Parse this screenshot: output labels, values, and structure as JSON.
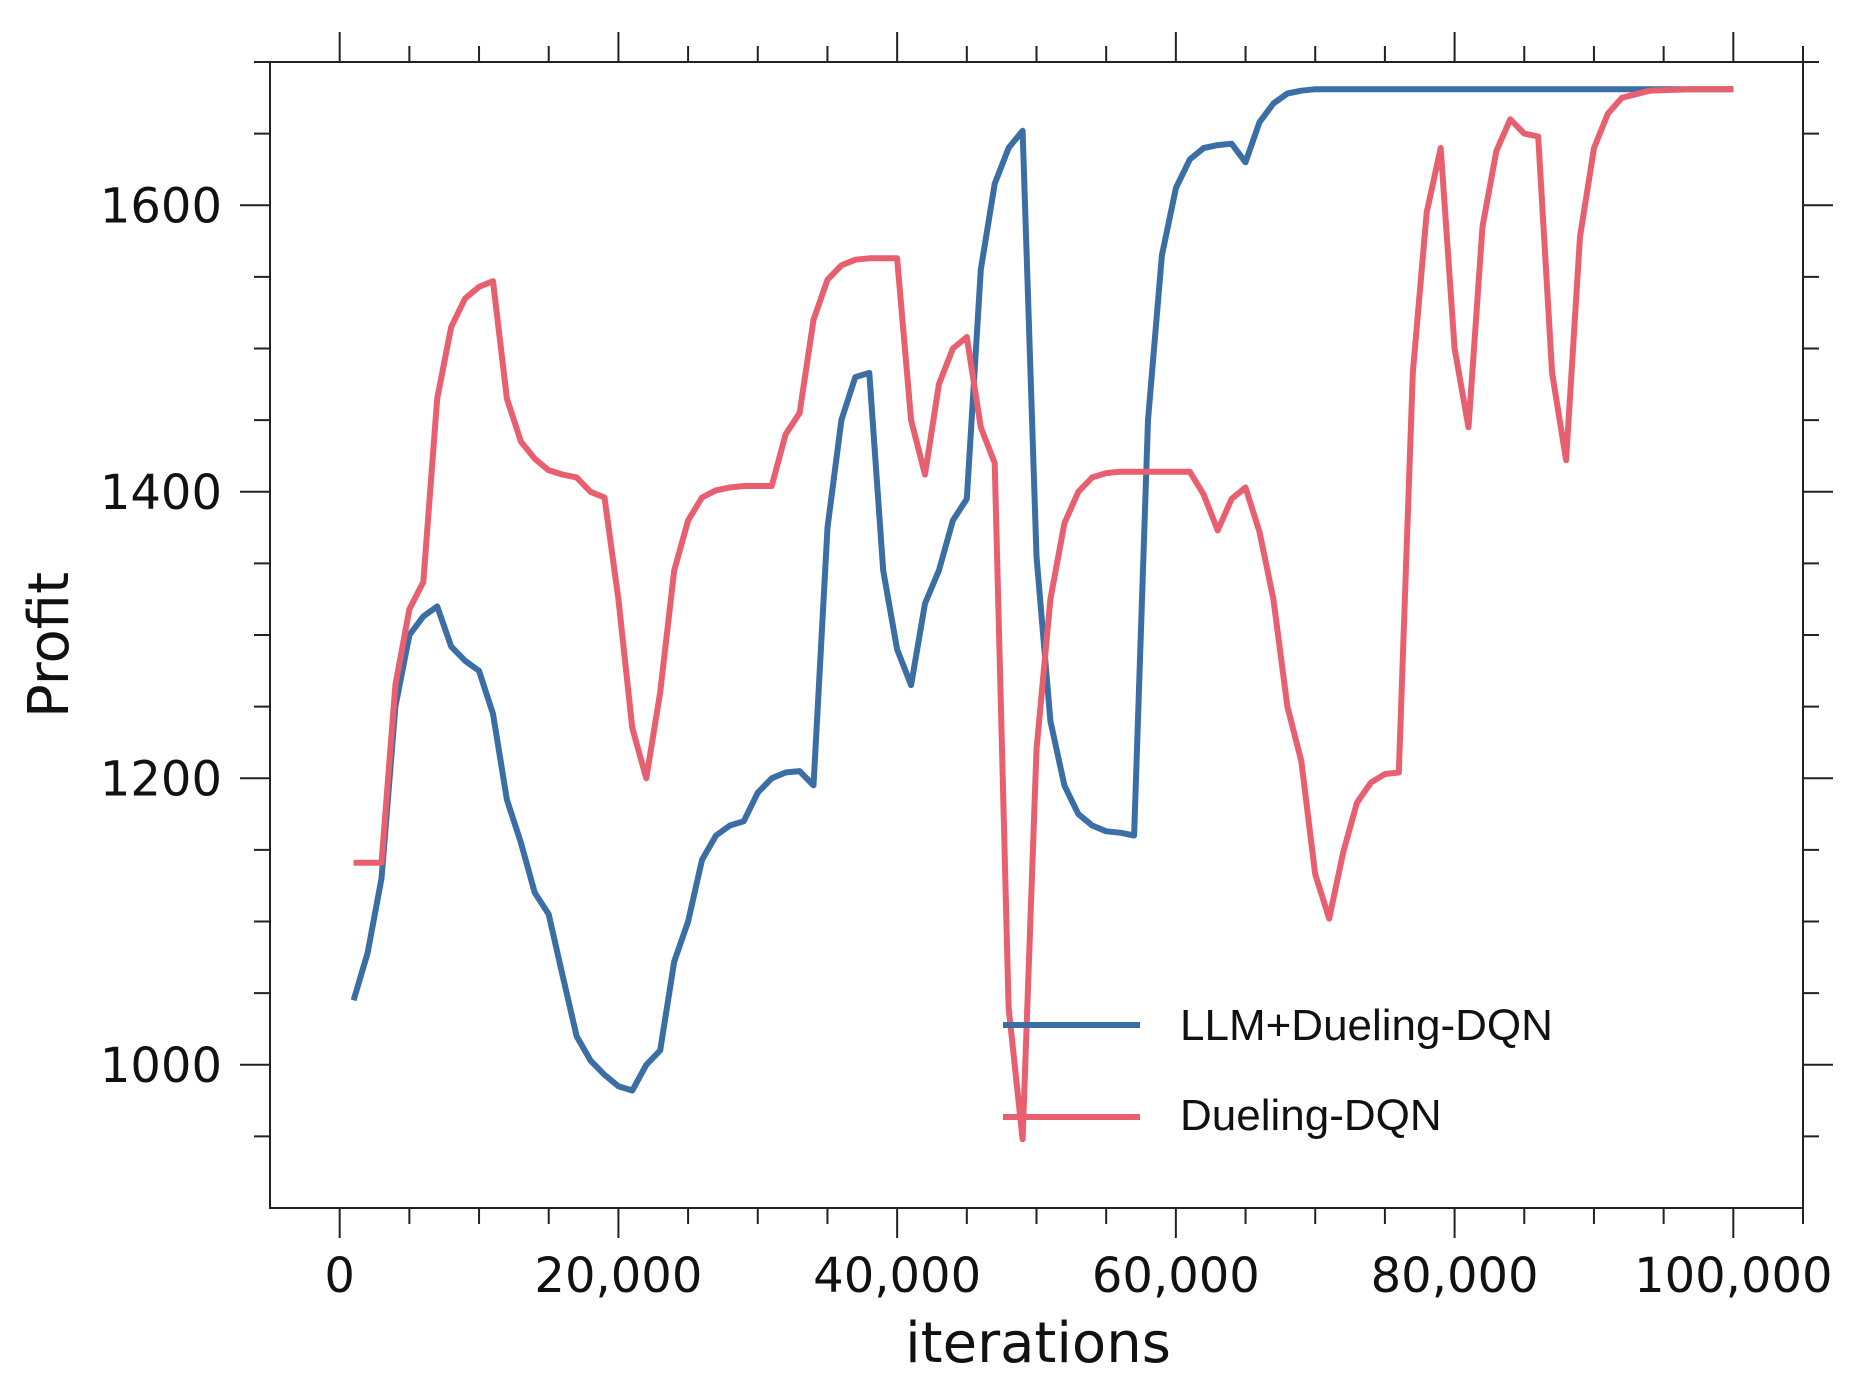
{
  "chart_data": {
    "type": "line",
    "title": "",
    "xlabel": "iterations",
    "ylabel": "Profit",
    "xlim": [
      -5000,
      105000
    ],
    "ylim": [
      900,
      1700
    ],
    "xticks": [
      0,
      20000,
      40000,
      60000,
      80000,
      100000
    ],
    "xtick_labels": [
      "0",
      "20,000",
      "40,000",
      "60,000",
      "80,000",
      "100,000"
    ],
    "yticks": [
      1000,
      1200,
      1400,
      1600
    ],
    "ytick_labels": [
      "1000",
      "1200",
      "1400",
      "1600"
    ],
    "grid": false,
    "legend_position": "bottom-center",
    "series": [
      {
        "name": "LLM+Dueling-DQN",
        "color": "#3b6ea5",
        "x": [
          1000,
          2000,
          3000,
          4000,
          5000,
          6000,
          7000,
          8000,
          9000,
          10000,
          11000,
          12000,
          13000,
          14000,
          15000,
          16000,
          17000,
          18000,
          19000,
          20000,
          21000,
          22000,
          23000,
          24000,
          25000,
          26000,
          27000,
          28000,
          29000,
          30000,
          31000,
          32000,
          33000,
          34000,
          35000,
          36000,
          37000,
          38000,
          39000,
          40000,
          41000,
          42000,
          43000,
          44000,
          45000,
          46000,
          47000,
          48000,
          49000,
          50000,
          51000,
          52000,
          53000,
          54000,
          55000,
          56000,
          57000,
          58000,
          59000,
          60000,
          61000,
          62000,
          63000,
          64000,
          65000,
          66000,
          67000,
          68000,
          69000,
          70000,
          72000,
          80000,
          90000,
          100000
        ],
        "y": [
          1045,
          1078,
          1130,
          1250,
          1300,
          1313,
          1320,
          1292,
          1282,
          1275,
          1245,
          1185,
          1155,
          1120,
          1105,
          1062,
          1020,
          1003,
          993,
          985,
          982,
          1000,
          1010,
          1072,
          1100,
          1143,
          1160,
          1167,
          1170,
          1190,
          1200,
          1204,
          1205,
          1195,
          1375,
          1450,
          1480,
          1483,
          1345,
          1290,
          1265,
          1322,
          1345,
          1380,
          1395,
          1555,
          1615,
          1640,
          1652,
          1355,
          1240,
          1195,
          1175,
          1167,
          1163,
          1162,
          1160,
          1450,
          1565,
          1612,
          1632,
          1640,
          1642,
          1643,
          1630,
          1658,
          1671,
          1678,
          1680,
          1681,
          1681,
          1681,
          1681,
          1681
        ]
      },
      {
        "name": "Dueling-DQN",
        "color": "#e8606f",
        "x": [
          1000,
          2000,
          3000,
          4000,
          5000,
          6000,
          7000,
          8000,
          9000,
          10000,
          11000,
          12000,
          13000,
          14000,
          15000,
          16000,
          17000,
          18000,
          19000,
          20000,
          21000,
          22000,
          23000,
          24000,
          25000,
          26000,
          27000,
          28000,
          29000,
          30000,
          31000,
          32000,
          33000,
          34000,
          35000,
          36000,
          37000,
          38000,
          39000,
          40000,
          41000,
          42000,
          43000,
          44000,
          45000,
          46000,
          47000,
          48000,
          49000,
          50000,
          51000,
          52000,
          53000,
          54000,
          55000,
          56000,
          57000,
          58000,
          59000,
          60000,
          61000,
          62000,
          63000,
          64000,
          65000,
          66000,
          67000,
          68000,
          69000,
          70000,
          71000,
          72000,
          73000,
          74000,
          75000,
          76000,
          77000,
          78000,
          79000,
          80000,
          81000,
          82000,
          83000,
          84000,
          85000,
          86000,
          87000,
          88000,
          89000,
          90000,
          91000,
          92000,
          94000,
          97000,
          100000
        ],
        "y": [
          1141,
          1141,
          1141,
          1265,
          1318,
          1337,
          1465,
          1515,
          1535,
          1543,
          1547,
          1465,
          1435,
          1423,
          1415,
          1412,
          1410,
          1400,
          1396,
          1325,
          1235,
          1200,
          1260,
          1345,
          1380,
          1396,
          1401,
          1403,
          1404,
          1404,
          1404,
          1440,
          1455,
          1520,
          1548,
          1558,
          1562,
          1563,
          1563,
          1563,
          1450,
          1412,
          1475,
          1500,
          1508,
          1445,
          1420,
          1040,
          948,
          1220,
          1325,
          1378,
          1400,
          1410,
          1413,
          1414,
          1414,
          1414,
          1414,
          1414,
          1414,
          1398,
          1373,
          1395,
          1403,
          1372,
          1325,
          1250,
          1212,
          1133,
          1102,
          1148,
          1183,
          1197,
          1203,
          1204,
          1483,
          1595,
          1640,
          1500,
          1445,
          1585,
          1638,
          1660,
          1650,
          1648,
          1483,
          1422,
          1578,
          1640,
          1664,
          1675,
          1680,
          1681,
          1681
        ]
      }
    ]
  }
}
